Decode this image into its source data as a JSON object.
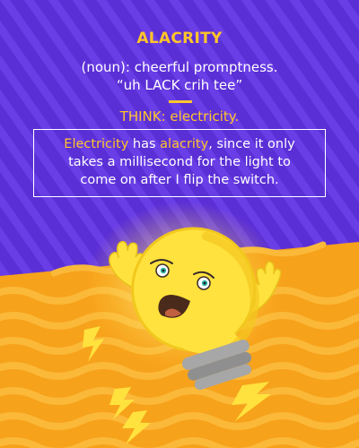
{
  "word": "ALACRITY",
  "definition": "(noun): cheerful promptness.",
  "pronunciation": "“uh LACK crih tee”",
  "think": "THINK: electricity.",
  "example": {
    "line1_highlight1": "Electricity",
    "line1_mid": " has ",
    "line1_highlight2": "alacrity",
    "line1_end": ", since it only",
    "line2": "takes a millisecond for the light to",
    "line3": "come on after I flip the switch."
  },
  "colors": {
    "background_purple": "#5b2fd6",
    "stripe_purple": "#6a3ee6",
    "orange": "#f7a21b",
    "orange_wave": "#fbb93a",
    "accent_yellow": "#ffc52b",
    "bulb_yellow": "#ffe23d",
    "text_white": "#ffffff"
  }
}
